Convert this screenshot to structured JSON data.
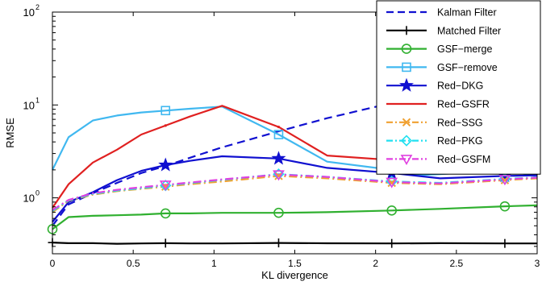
{
  "chart_data": {
    "type": "line",
    "title": "",
    "xlabel": "KL divergence",
    "ylabel": "RMSE",
    "xlim": [
      0,
      3
    ],
    "ylim": [
      0.25,
      100
    ],
    "yscale": "log",
    "grid": false,
    "legend_position": "top-right",
    "x_ticks": [
      0,
      0.5,
      1,
      1.5,
      2,
      2.5,
      3
    ],
    "x_tick_labels": [
      "0",
      "0.5",
      "1",
      "1.5",
      "2",
      "2.5",
      "3"
    ],
    "y_ticks": [
      1,
      10,
      100
    ],
    "y_tick_labels": [
      {
        "base": "10",
        "exp": "0"
      },
      {
        "base": "10",
        "exp": "1"
      },
      {
        "base": "10",
        "exp": "2"
      }
    ],
    "series": [
      {
        "name": "Kalman Filter",
        "color": "#1010d0",
        "style": "dashed",
        "marker": "none",
        "x": [
          0,
          0.1,
          0.25,
          0.4,
          0.55,
          0.7,
          0.85,
          1.05,
          1.4,
          1.7,
          2.1,
          2.4
        ],
        "y": [
          0.5,
          0.85,
          1.12,
          1.45,
          1.85,
          2.2,
          2.7,
          3.5,
          5.2,
          7.2,
          10.5,
          13.5
        ]
      },
      {
        "name": "Matched Filter",
        "color": "#000000",
        "style": "solid",
        "marker": "plus",
        "x": [
          0,
          0.1,
          0.25,
          0.4,
          0.55,
          0.7,
          0.85,
          1.05,
          1.4,
          1.7,
          2.1,
          2.4,
          2.8,
          3.0
        ],
        "y": [
          0.33,
          0.325,
          0.325,
          0.32,
          0.323,
          0.325,
          0.323,
          0.323,
          0.327,
          0.324,
          0.323,
          0.325,
          0.323,
          0.323
        ],
        "marker_x": [
          0,
          0.7,
          1.4,
          2.1,
          2.8
        ]
      },
      {
        "name": "GSF−merge",
        "color": "#30b030",
        "style": "solid",
        "marker": "circle",
        "x": [
          0,
          0.1,
          0.25,
          0.4,
          0.55,
          0.7,
          0.85,
          1.05,
          1.4,
          1.7,
          2.1,
          2.4,
          2.8,
          3.0
        ],
        "y": [
          0.46,
          0.62,
          0.64,
          0.65,
          0.66,
          0.68,
          0.68,
          0.69,
          0.69,
          0.7,
          0.73,
          0.76,
          0.81,
          0.83
        ],
        "marker_x": [
          0,
          0.7,
          1.4,
          2.1,
          2.8
        ]
      },
      {
        "name": "GSF−remove",
        "color": "#40b8f0",
        "style": "solid",
        "marker": "square",
        "x": [
          0,
          0.1,
          0.25,
          0.4,
          0.55,
          0.7,
          0.85,
          1.05,
          1.4,
          1.7,
          2.1,
          2.25,
          2.4,
          2.8,
          3.0
        ],
        "y": [
          2.0,
          4.5,
          6.8,
          7.7,
          8.3,
          8.7,
          9.1,
          9.6,
          4.8,
          2.45,
          2.0,
          1.75,
          1.8,
          2.0,
          1.7
        ],
        "marker_x": [
          0.7,
          1.4,
          2.1,
          2.8
        ]
      },
      {
        "name": "Red−DKG",
        "color": "#1010d0",
        "style": "solid",
        "marker": "star",
        "x": [
          0,
          0.1,
          0.25,
          0.4,
          0.55,
          0.7,
          0.85,
          1.05,
          1.4,
          1.7,
          2.1,
          2.4,
          2.8,
          3.0
        ],
        "y": [
          0.55,
          0.9,
          1.15,
          1.55,
          1.95,
          2.25,
          2.5,
          2.8,
          2.65,
          2.1,
          1.85,
          1.62,
          1.72,
          1.75
        ],
        "marker_x": [
          0.7,
          1.4,
          2.1,
          2.8
        ]
      },
      {
        "name": "Red−GSFR",
        "color": "#e02020",
        "style": "solid",
        "marker": "dot",
        "x": [
          0,
          0.1,
          0.25,
          0.4,
          0.55,
          0.7,
          0.85,
          1.05,
          1.4,
          1.7,
          2.1,
          2.4,
          2.8,
          3.0
        ],
        "y": [
          0.78,
          1.4,
          2.4,
          3.3,
          4.8,
          6.0,
          7.5,
          9.8,
          5.8,
          2.85,
          2.55,
          2.3,
          2.0,
          2.15
        ],
        "marker_x": [
          0.7,
          1.4,
          2.1,
          2.8
        ]
      },
      {
        "name": "Red−SSG",
        "color": "#f0a030",
        "style": "dashdot",
        "marker": "x",
        "x": [
          0,
          0.1,
          0.25,
          0.4,
          0.55,
          0.7,
          0.85,
          1.05,
          1.4,
          1.7,
          2.1,
          2.4,
          2.8,
          3.0
        ],
        "y": [
          0.7,
          0.93,
          1.08,
          1.18,
          1.25,
          1.32,
          1.4,
          1.5,
          1.72,
          1.62,
          1.45,
          1.4,
          1.55,
          1.62
        ],
        "marker_x": [
          0.7,
          1.4,
          2.1,
          2.8
        ]
      },
      {
        "name": "Red−PKG",
        "color": "#20e0f0",
        "style": "dashdot",
        "marker": "diamond",
        "x": [
          0,
          0.1,
          0.25,
          0.4,
          0.55,
          0.7,
          0.85,
          1.05,
          1.4,
          1.7,
          2.1,
          2.4,
          2.8,
          3.0
        ],
        "y": [
          0.72,
          0.94,
          1.1,
          1.2,
          1.27,
          1.36,
          1.44,
          1.56,
          1.8,
          1.68,
          1.5,
          1.45,
          1.6,
          1.66
        ],
        "marker_x": [
          0.7,
          1.4,
          2.1,
          2.8
        ]
      },
      {
        "name": "Red−GSFM",
        "color": "#e040e0",
        "style": "dashdot",
        "marker": "triangle-down",
        "x": [
          0,
          0.1,
          0.25,
          0.4,
          0.55,
          0.7,
          0.85,
          1.05,
          1.4,
          1.7,
          2.1,
          2.4,
          2.8,
          3.0
        ],
        "y": [
          0.74,
          0.95,
          1.12,
          1.22,
          1.3,
          1.38,
          1.46,
          1.58,
          1.78,
          1.68,
          1.48,
          1.43,
          1.58,
          1.65
        ],
        "marker_x": [
          0.7,
          1.4,
          2.1,
          2.8
        ]
      }
    ]
  }
}
